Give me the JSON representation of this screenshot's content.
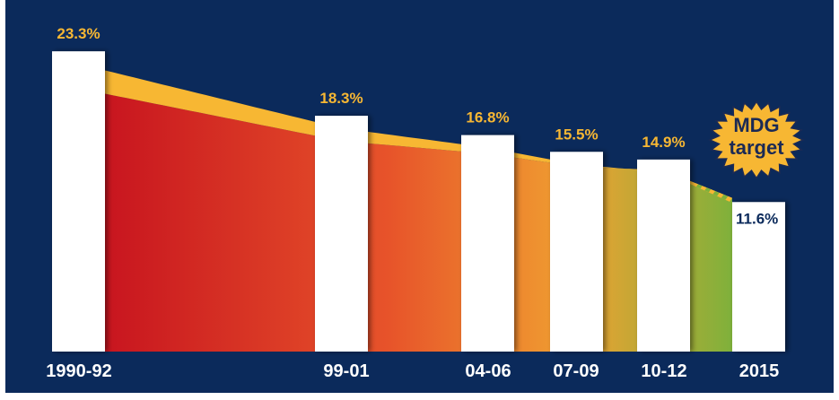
{
  "chart_data": {
    "type": "bar",
    "categories": [
      "1990-92",
      "99-01",
      "04-06",
      "07-09",
      "10-12",
      "2015"
    ],
    "values": [
      23.3,
      18.3,
      16.8,
      15.5,
      14.9,
      11.6
    ],
    "value_labels": [
      "23.3%",
      "18.3%",
      "16.8%",
      "15.5%",
      "14.9%",
      "11.6%"
    ],
    "title": "",
    "xlabel": "",
    "ylabel": "",
    "ylim": [
      0,
      24.5
    ],
    "grid": false,
    "badge": {
      "line1": "MDG",
      "line2": "target"
    },
    "colors": {
      "background": "#0b2a5b",
      "bar": "#ffffff",
      "label": "#f7b733",
      "target_label": "#0b2a5b",
      "trend_band": "#f7b733",
      "gradient": [
        "#c8151f",
        "#e7532a",
        "#f0a131",
        "#7fb13b"
      ],
      "badge": "#f7b733"
    }
  }
}
